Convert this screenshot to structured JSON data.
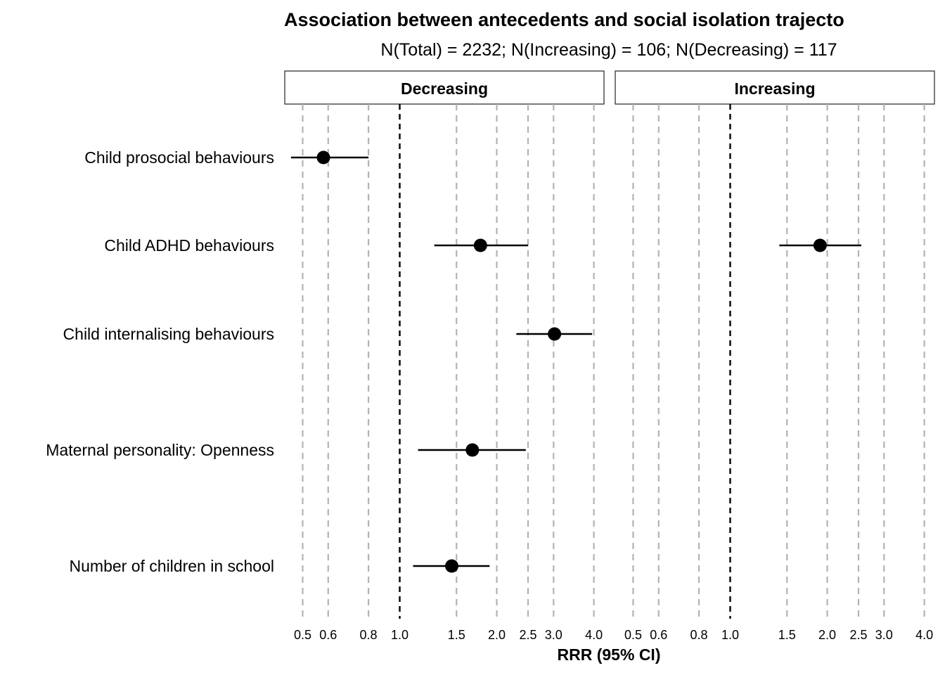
{
  "chart_data": {
    "type": "scatter",
    "subtype": "forest-plot",
    "title": "Association between antecedents and social isolation trajecto",
    "subtitle": "N(Total) = 2232; N(Increasing) = 106; N(Decreasing) = 117",
    "xlabel": "RRR (95% CI)",
    "x_scale": "log",
    "xlim": [
      0.44,
      4.3
    ],
    "x_ticks": [
      0.5,
      0.6,
      0.8,
      1.0,
      1.5,
      2.0,
      2.5,
      3.0,
      4.0
    ],
    "x_tick_labels": [
      "0.5",
      "0.6",
      "0.8",
      "1.0",
      "1.5",
      "2.0",
      "2.5",
      "3.0",
      "4.0"
    ],
    "reference_line": 1.0,
    "grid": "vertical dashed",
    "categories": [
      "Child prosocial behaviours",
      "Child ADHD behaviours",
      "Child internalising behaviours",
      "Maternal personality: Openness",
      "Number of children in school"
    ],
    "panels": [
      {
        "label": "Decreasing",
        "points": [
          {
            "category": "Child prosocial behaviours",
            "estimate": 0.58,
            "lower": 0.46,
            "upper": 0.8
          },
          {
            "category": "Child ADHD behaviours",
            "estimate": 1.78,
            "lower": 1.28,
            "upper": 2.5
          },
          {
            "category": "Child internalising behaviours",
            "estimate": 3.02,
            "lower": 2.3,
            "upper": 3.95
          },
          {
            "category": "Maternal personality: Openness",
            "estimate": 1.68,
            "lower": 1.14,
            "upper": 2.46
          },
          {
            "category": "Number of children in school",
            "estimate": 1.45,
            "lower": 1.1,
            "upper": 1.9
          }
        ]
      },
      {
        "label": "Increasing",
        "points": [
          {
            "category": "Child ADHD behaviours",
            "estimate": 1.9,
            "lower": 1.42,
            "upper": 2.55
          }
        ]
      }
    ]
  }
}
